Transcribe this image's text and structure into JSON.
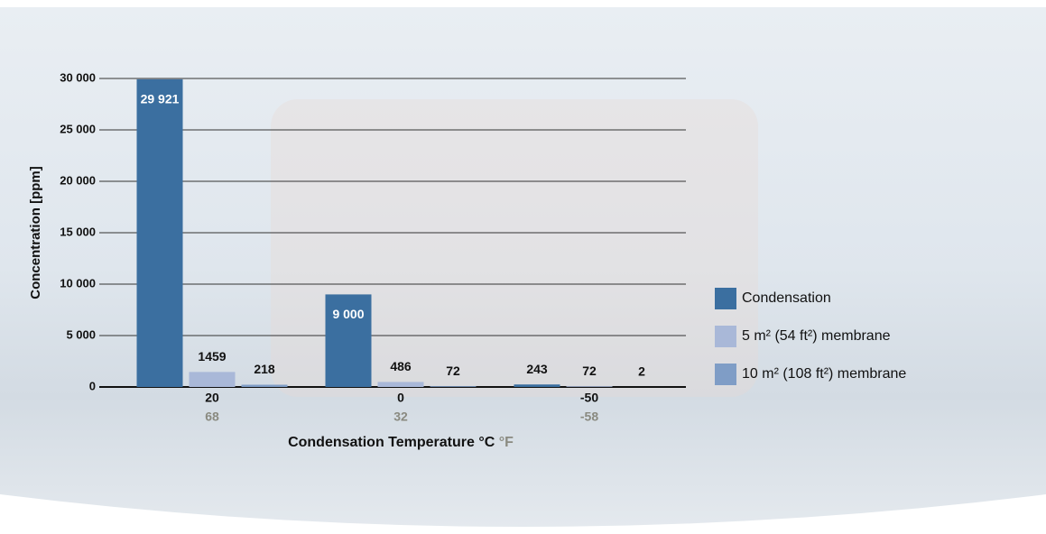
{
  "chart_data": {
    "type": "bar",
    "ylabel": "Concentration [ppm]",
    "xlabel": "Condensation Temperature °C",
    "xlabel_secondary": "°F",
    "categories": [
      "20",
      "0",
      "-50"
    ],
    "categories_secondary": [
      "68",
      "32",
      "-58"
    ],
    "series": [
      {
        "name": "Condensation",
        "color": "#3b6fa0",
        "values": [
          29921,
          9000,
          243
        ],
        "value_labels": [
          "29 921",
          "9 000",
          "243"
        ]
      },
      {
        "name": "5 m² (54 ft²) membrane",
        "color": "#a9b8d8",
        "values": [
          1459,
          486,
          72
        ]
      },
      {
        "name": "10 m² (108 ft²) membrane",
        "color": "#7f9dc6",
        "values": [
          218,
          72,
          2
        ]
      }
    ],
    "ylim": [
      0,
      30000
    ],
    "yticks": [
      0,
      {
        "value": 5000,
        "label": "5 000"
      },
      {
        "value": 10000,
        "label": "10 000"
      },
      {
        "value": 15000,
        "label": "15 000"
      },
      {
        "value": 20000,
        "label": "20 000"
      },
      {
        "value": 25000,
        "label": "25 000"
      },
      {
        "value": 30000,
        "label": "30 000"
      }
    ],
    "grid": true,
    "legend": "right"
  }
}
